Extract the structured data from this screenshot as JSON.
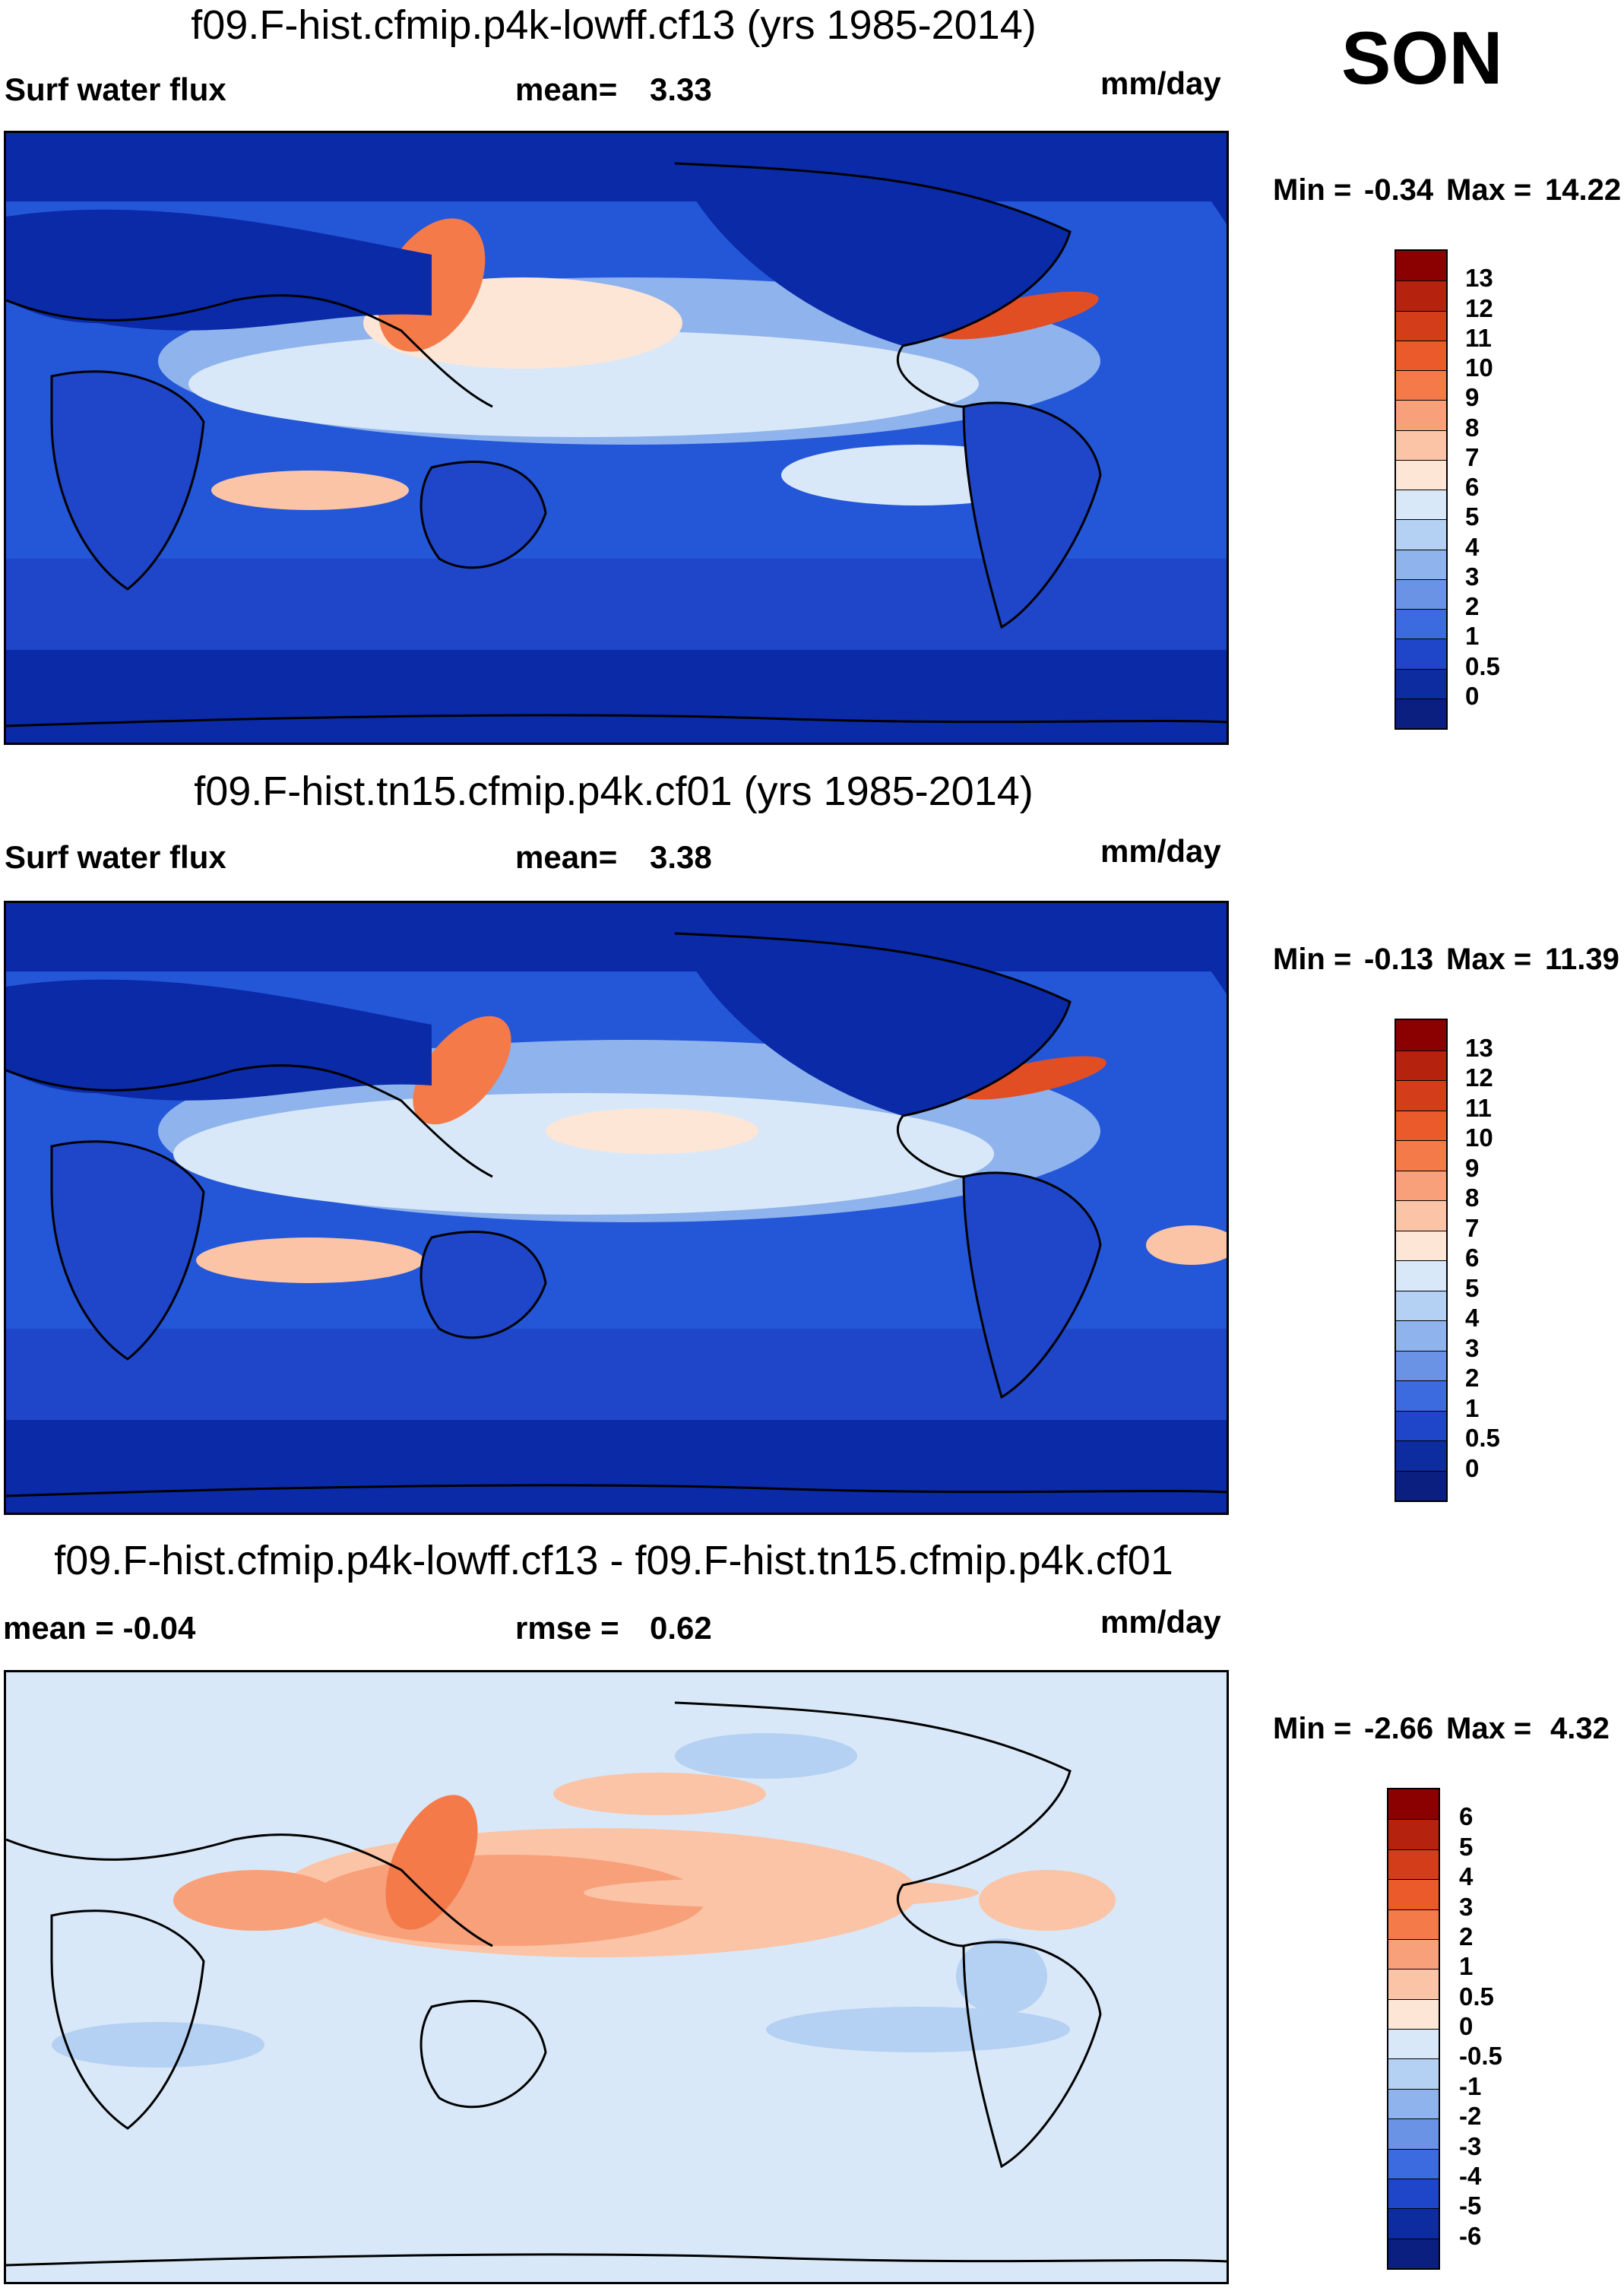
{
  "season": "SON",
  "panels": [
    {
      "title": "f09.F-hist.cfmip.p4k-lowff.cf13 (yrs 1985-2014)",
      "left_label": "Surf water flux",
      "stat1_label": "mean=",
      "stat1_value": "3.33",
      "units": "mm/day",
      "min_label": "Min =",
      "min_value": "-0.34",
      "max_label": "Max =",
      "max_value": "14.22"
    },
    {
      "title": "f09.F-hist.tn15.cfmip.p4k.cf01 (yrs 1985-2014)",
      "left_label": "Surf water flux",
      "stat1_label": "mean=",
      "stat1_value": "3.38",
      "units": "mm/day",
      "min_label": "Min =",
      "min_value": "-0.13",
      "max_label": "Max =",
      "max_value": "11.39"
    },
    {
      "title": "f09.F-hist.cfmip.p4k-lowff.cf13 - f09.F-hist.tn15.cfmip.p4k.cf01",
      "left_label": "mean =  -0.04",
      "stat1_label": "rmse =",
      "stat1_value": "0.62",
      "units": "mm/day",
      "min_label": "Min =",
      "min_value": "-2.66",
      "max_label": "Max =",
      "max_value": "4.32"
    }
  ],
  "colorbars": {
    "abs": {
      "labels": [
        "13",
        "12",
        "11",
        "10",
        "9",
        "8",
        "7",
        "6",
        "5",
        "4",
        "3",
        "2",
        "1",
        "0.5",
        "0"
      ],
      "colors": [
        "#8b0000",
        "#b5230f",
        "#d43d1a",
        "#ea5a2a",
        "#f47a4a",
        "#f8a07a",
        "#fbc4a6",
        "#fde6d6",
        "#d9e8f8",
        "#b4d0f2",
        "#8fb3ec",
        "#6a93e6",
        "#3c6be0",
        "#1f45c8",
        "#0c2ca0",
        "#0a1f80"
      ]
    },
    "diff": {
      "labels": [
        "6",
        "5",
        "4",
        "3",
        "2",
        "1",
        "0.5",
        "0",
        "-0.5",
        "-1",
        "-2",
        "-3",
        "-4",
        "-5",
        "-6"
      ],
      "colors": [
        "#8b0000",
        "#b5230f",
        "#d43d1a",
        "#ea5a2a",
        "#f47a4a",
        "#f8a07a",
        "#fbc4a6",
        "#fde6d6",
        "#d9e8f8",
        "#b4d0f2",
        "#8fb3ec",
        "#6a93e6",
        "#3c6be0",
        "#1f45c8",
        "#0c2ca0",
        "#0a1f80"
      ]
    }
  },
  "map_colors": {
    "deep_blue": "#0a2aa8",
    "mid_blue": "#2456d8",
    "light_blue": "#8fb3ec",
    "pale_blue": "#d9e8f8",
    "pale_orange": "#fbc4a6",
    "orange": "#f47a4a",
    "red_orange": "#e14e24",
    "coast": "#000000"
  }
}
